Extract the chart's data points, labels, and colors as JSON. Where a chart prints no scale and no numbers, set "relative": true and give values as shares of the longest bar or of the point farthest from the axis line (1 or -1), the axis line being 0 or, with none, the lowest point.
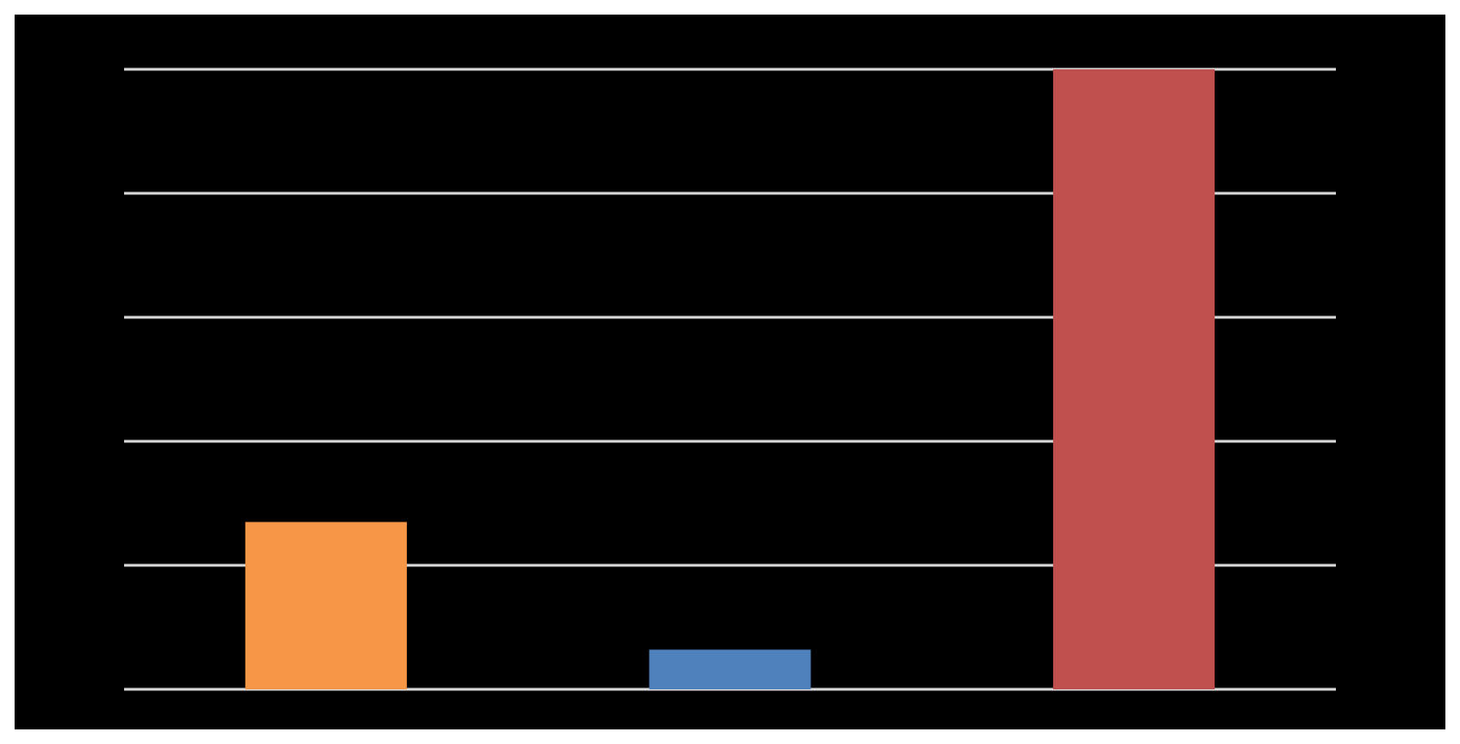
{
  "chart_data": {
    "type": "bar",
    "relative": true,
    "categories": [
      null,
      null,
      null
    ],
    "values": [
      0.27,
      0.064,
      1
    ],
    "colors": [
      "#f79646",
      "#4f81bd",
      "#c0504d"
    ],
    "grid": "y"
  }
}
